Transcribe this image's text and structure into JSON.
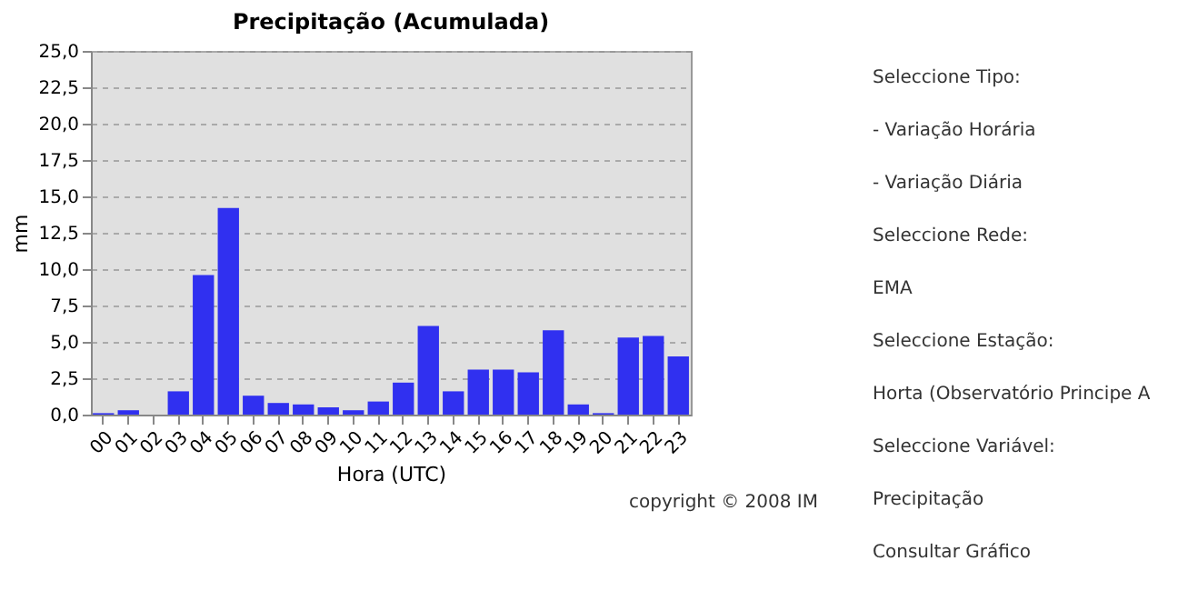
{
  "chart_data": [
    {
      "type": "bar",
      "title": "Precipitação (Acumulada)",
      "xlabel": "Hora (UTC)",
      "ylabel": "mm",
      "categories": [
        "00",
        "01",
        "02",
        "03",
        "04",
        "05",
        "06",
        "07",
        "08",
        "09",
        "10",
        "11",
        "12",
        "13",
        "14",
        "15",
        "16",
        "17",
        "18",
        "19",
        "20",
        "21",
        "22",
        "23"
      ],
      "values": [
        0.1,
        0.3,
        0,
        1.6,
        9.6,
        14.2,
        1.3,
        0.8,
        0.7,
        0.5,
        0.3,
        0.9,
        2.2,
        6.1,
        1.6,
        3.1,
        3.1,
        2.9,
        5.8,
        0.7,
        0.1,
        5.3,
        5.4,
        4.0
      ],
      "color": "#3030f0",
      "ylim": [
        0,
        25
      ],
      "yticks": [
        {
          "value": 0,
          "label": "0,0"
        },
        {
          "value": 2.5,
          "label": "2,5"
        },
        {
          "value": 5,
          "label": "5,0"
        },
        {
          "value": 7.5,
          "label": "7,5"
        },
        {
          "value": 10,
          "label": "10,0"
        },
        {
          "value": 12.5,
          "label": "12,5"
        },
        {
          "value": 15,
          "label": "15,0"
        },
        {
          "value": 17.5,
          "label": "17,5"
        },
        {
          "value": 20,
          "label": "20,0"
        },
        {
          "value": 22.5,
          "label": "22,5"
        },
        {
          "value": 25,
          "label": "25,0"
        }
      ],
      "grid": "y",
      "annotations": [
        "copyright © 2008 IM"
      ]
    },
    {
      "type": "other",
      "annotations": [
        "Seleccione Tipo:",
        "- Variação Horária",
        "- Variação Diária",
        "Seleccione Rede:",
        "EMA",
        "Seleccione Estação:",
        "Horta (Observatório Principe A",
        "Seleccione Variável:",
        "Precipitação",
        "Consultar Gráfico"
      ]
    }
  ]
}
